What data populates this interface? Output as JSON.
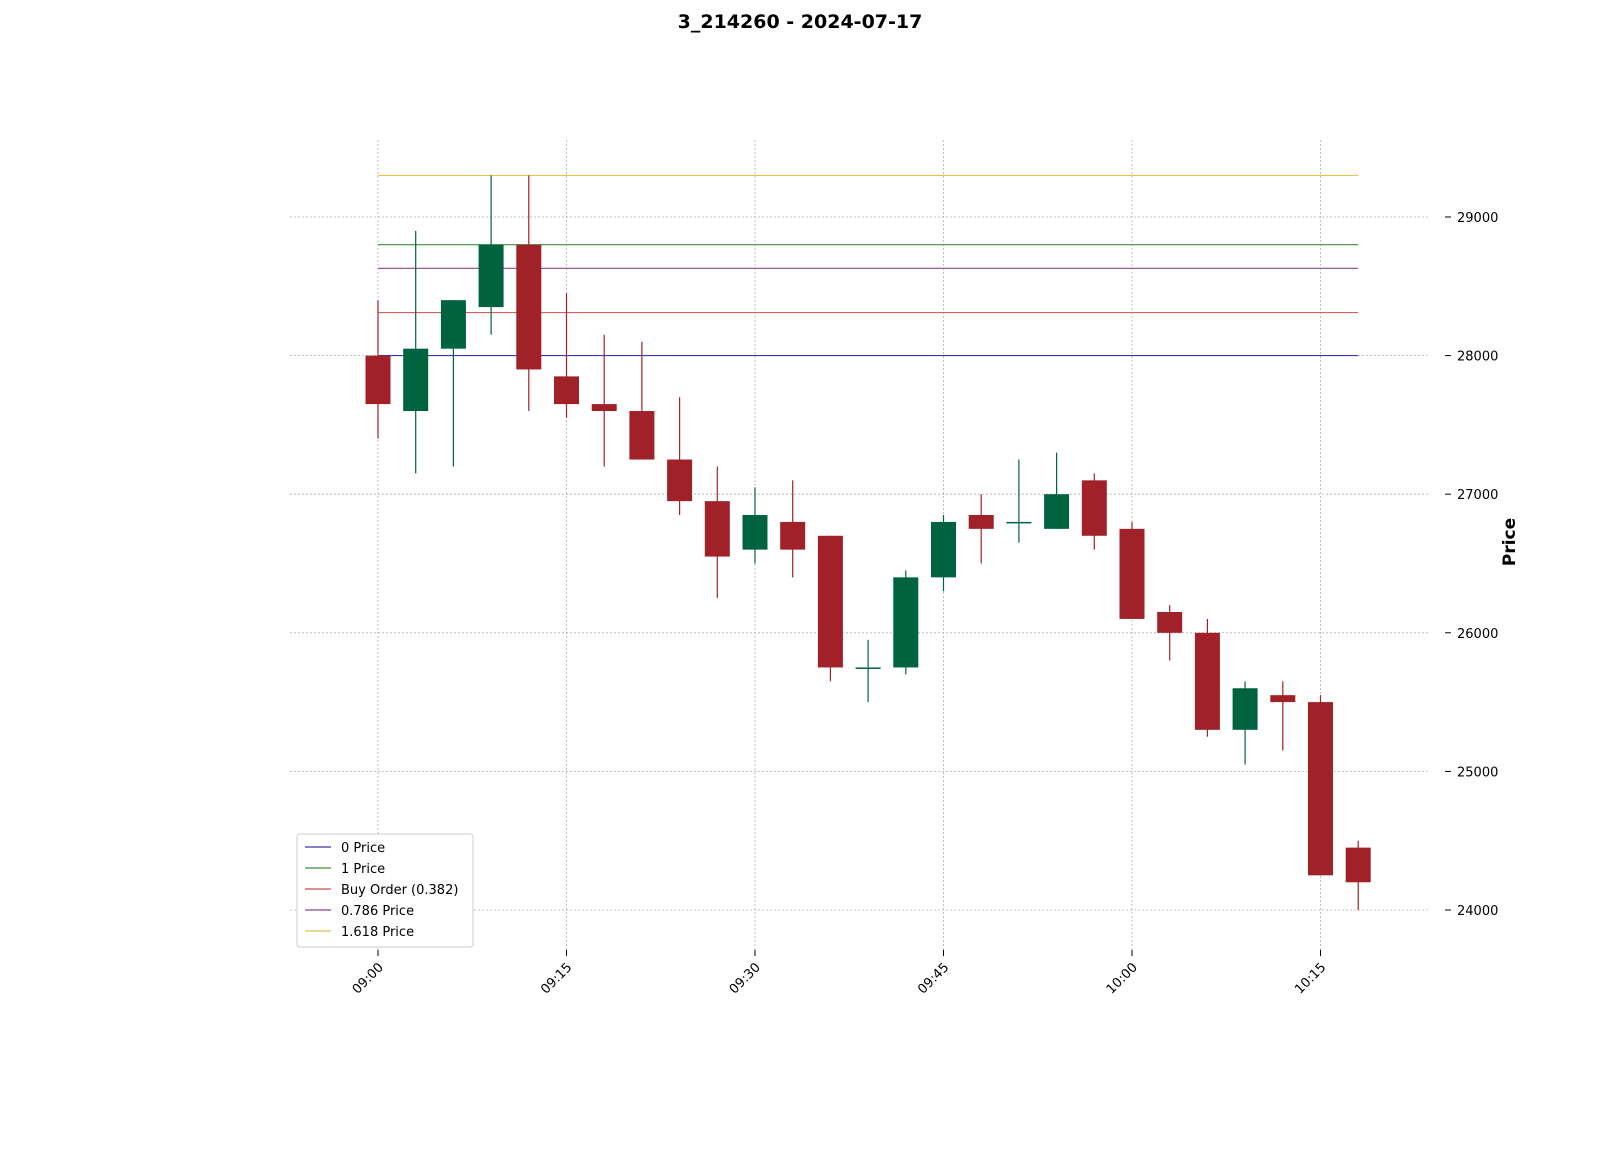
{
  "chart_data": {
    "type": "candlestick",
    "title": "3\u0001_214260 - 2024-07-17",
    "xlabel": "",
    "ylabel": "Price",
    "ylim": [
      23750,
      29550
    ],
    "y_ticks": [
      24000,
      25000,
      26000,
      27000,
      28000,
      29000
    ],
    "x_tick_labels": [
      "09:00",
      "09:15",
      "09:30",
      "09:45",
      "10:00",
      "10:15"
    ],
    "grid": true,
    "legend_position": "lower-left",
    "colors": {
      "up": "#006340",
      "down": "#a02128"
    },
    "candles": [
      {
        "time": "09:00",
        "open": 28000,
        "high": 28400,
        "low": 27400,
        "close": 27650
      },
      {
        "time": "09:03",
        "open": 27600,
        "high": 28900,
        "low": 27150,
        "close": 28050
      },
      {
        "time": "09:06",
        "open": 28050,
        "high": 28400,
        "low": 27200,
        "close": 28400
      },
      {
        "time": "09:09",
        "open": 28350,
        "high": 29300,
        "low": 28150,
        "close": 28800
      },
      {
        "time": "09:12",
        "open": 28800,
        "high": 29300,
        "low": 27600,
        "close": 27900
      },
      {
        "time": "09:15",
        "open": 27850,
        "high": 28450,
        "low": 27550,
        "close": 27650
      },
      {
        "time": "09:18",
        "open": 27650,
        "high": 28150,
        "low": 27200,
        "close": 27600
      },
      {
        "time": "09:21",
        "open": 27600,
        "high": 28100,
        "low": 27250,
        "close": 27250
      },
      {
        "time": "09:24",
        "open": 27250,
        "high": 27700,
        "low": 26850,
        "close": 26950
      },
      {
        "time": "09:27",
        "open": 26950,
        "high": 27200,
        "low": 26250,
        "close": 26550
      },
      {
        "time": "09:30",
        "open": 26600,
        "high": 27050,
        "low": 26500,
        "close": 26850
      },
      {
        "time": "09:33",
        "open": 26800,
        "high": 27100,
        "low": 26400,
        "close": 26600
      },
      {
        "time": "09:36",
        "open": 26700,
        "high": 26700,
        "low": 25650,
        "close": 25750
      },
      {
        "time": "09:39",
        "open": 25750,
        "high": 25950,
        "low": 25500,
        "close": 25750
      },
      {
        "time": "09:42",
        "open": 25750,
        "high": 26450,
        "low": 25700,
        "close": 26400
      },
      {
        "time": "09:45",
        "open": 26400,
        "high": 26850,
        "low": 26300,
        "close": 26800
      },
      {
        "time": "09:48",
        "open": 26850,
        "high": 27000,
        "low": 26500,
        "close": 26750
      },
      {
        "time": "09:51",
        "open": 26800,
        "high": 27250,
        "low": 26650,
        "close": 26800
      },
      {
        "time": "09:54",
        "open": 26750,
        "high": 27300,
        "low": 26750,
        "close": 27000
      },
      {
        "time": "09:57",
        "open": 27100,
        "high": 27150,
        "low": 26600,
        "close": 26700
      },
      {
        "time": "10:00",
        "open": 26750,
        "high": 26800,
        "low": 26100,
        "close": 26100
      },
      {
        "time": "10:03",
        "open": 26150,
        "high": 26200,
        "low": 25800,
        "close": 26000
      },
      {
        "time": "10:06",
        "open": 26000,
        "high": 26100,
        "low": 25250,
        "close": 25300
      },
      {
        "time": "10:09",
        "open": 25300,
        "high": 25650,
        "low": 25050,
        "close": 25600
      },
      {
        "time": "10:12",
        "open": 25550,
        "high": 25650,
        "low": 25150,
        "close": 25500
      },
      {
        "time": "10:15",
        "open": 25500,
        "high": 25550,
        "low": 24250,
        "close": 24250
      },
      {
        "time": "10:18",
        "open": 24450,
        "high": 24500,
        "low": 24000,
        "close": 24200
      }
    ],
    "hlines": [
      {
        "name": "0 Price",
        "value": 28000,
        "color": "#3b36a8"
      },
      {
        "name": "1 Price",
        "value": 28800,
        "color": "#3f8f3f"
      },
      {
        "name": "Buy Order (0.382)",
        "value": 28310,
        "color": "#c8504f"
      },
      {
        "name": "0.786 Price",
        "value": 28630,
        "color": "#8b4590"
      },
      {
        "name": "1.618 Price",
        "value": 29300,
        "color": "#e8c25a"
      }
    ]
  }
}
